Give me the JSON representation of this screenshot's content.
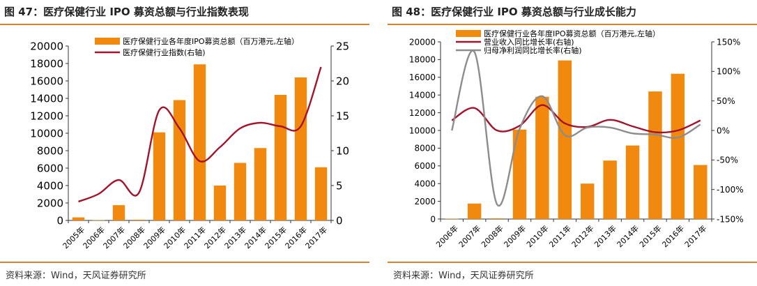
{
  "charts": [
    {
      "title": "图 47：医疗保健行业 IPO 募资总额与行业指数表现",
      "source": "资料来源：Wind，天风证券研究所"
    },
    {
      "title": "图 48：医疗保健行业 IPO 募资总额与行业成长能力",
      "source": "资料来源：Wind，天风证券研究所"
    }
  ],
  "colors": {
    "bar": "#f0890d",
    "line_red": "#a3132b",
    "line_gray": "#8c8c8c",
    "rule": "#d9822b"
  },
  "chart_data": [
    {
      "type": "bar+line",
      "categories": [
        "2005年",
        "2006年",
        "2007年",
        "2008年",
        "2009年",
        "2010年",
        "2011年",
        "2012年",
        "2013年",
        "2014年",
        "2015年",
        "2016年",
        "2017年"
      ],
      "series": [
        {
          "name": "医疗保健行业各年度IPO募资总额（百万港元,左轴）",
          "type": "bar",
          "axis": "left",
          "values": [
            350,
            30,
            1750,
            80,
            10100,
            13800,
            17900,
            4000,
            6600,
            8300,
            14400,
            16400,
            6100
          ]
        },
        {
          "name": "医疗保健行业指数(右轴)",
          "type": "line",
          "axis": "right",
          "values": [
            2.7,
            3.8,
            5.8,
            4.0,
            15.8,
            13.2,
            8.5,
            10.5,
            13.2,
            14.0,
            13.5,
            13.5,
            22.0
          ]
        }
      ],
      "left_axis": {
        "ylim": [
          0,
          20000
        ],
        "ticks": [
          "0",
          "2000",
          "4000",
          "6000",
          "8000",
          "10000",
          "12000",
          "14000",
          "16000",
          "18000",
          "20000"
        ]
      },
      "right_axis": {
        "ylim": [
          0,
          25
        ],
        "ticks": [
          "0",
          "5",
          "10",
          "15",
          "20",
          "25"
        ]
      }
    },
    {
      "type": "bar+line",
      "categories": [
        "2006年",
        "2007年",
        "2008年",
        "2009年",
        "2010年",
        "2011年",
        "2012年",
        "2013年",
        "2014年",
        "2015年",
        "2016年",
        "2017年"
      ],
      "series": [
        {
          "name": "医疗保健行业各年度IPO募资总额（百万港元,左轴）",
          "type": "bar",
          "axis": "left",
          "values": [
            30,
            1750,
            80,
            10100,
            13800,
            17900,
            4000,
            6600,
            8300,
            14400,
            16400,
            6100
          ]
        },
        {
          "name": "营业收入同比增长率(右轴)",
          "type": "line",
          "axis": "right",
          "values": [
            17,
            38,
            0,
            8,
            43,
            12,
            6,
            18,
            7,
            -3,
            0,
            17
          ]
        },
        {
          "name": "归母净利润同比增长率(右轴)",
          "type": "line",
          "axis": "right",
          "values": [
            0,
            133,
            -125,
            3,
            58,
            -8,
            5,
            5,
            -5,
            -7,
            -12,
            10
          ]
        }
      ],
      "left_axis": {
        "ylim": [
          0,
          20000
        ],
        "ticks": [
          "0",
          "2000",
          "4000",
          "6000",
          "8000",
          "10000",
          "12000",
          "14000",
          "16000",
          "18000",
          "20000"
        ]
      },
      "right_axis": {
        "ylim": [
          -150,
          150
        ],
        "ticks": [
          "-150%",
          "-100%",
          "-50%",
          "0%",
          "50%",
          "100%",
          "150%"
        ]
      }
    }
  ]
}
